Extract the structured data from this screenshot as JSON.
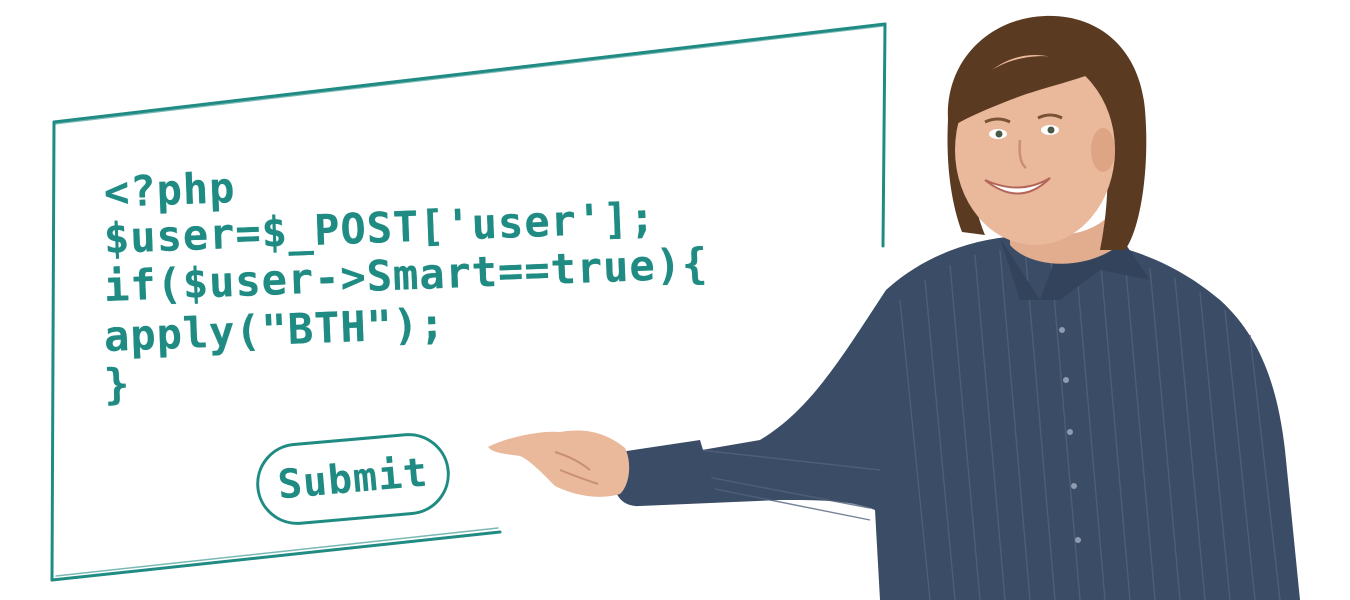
{
  "code_board": {
    "lines": [
      "<?php",
      "$user=$_POST['user'];",
      "if($user->Smart==true){",
      "apply(\"BTH\");",
      "}"
    ],
    "submit_label": "Submit"
  },
  "colors": {
    "ink": "#1f8b83",
    "shirt": "#3b4c66",
    "hair": "#5b3a22",
    "skin": "#eab89a",
    "background": "#ffffff"
  },
  "scene": {
    "subject": "man-pointing-at-board",
    "icons": [
      "whiteboard-frame",
      "pointing-hand-icon"
    ]
  }
}
